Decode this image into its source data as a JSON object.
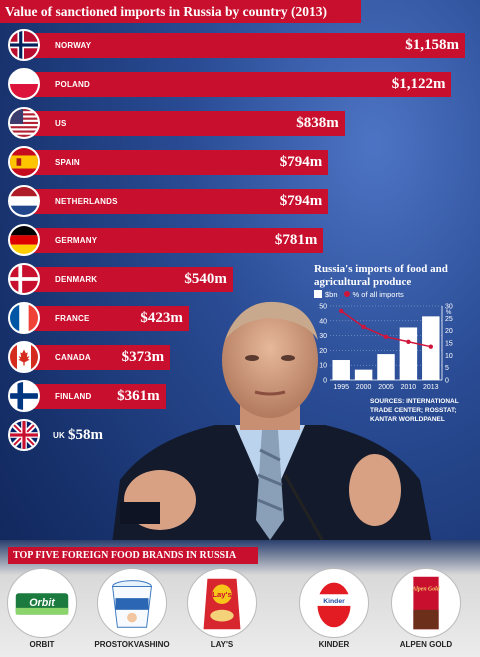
{
  "title": "Value of sanctioned imports in Russia by country (2013)",
  "chart_data": [
    {
      "type": "bar",
      "title": "Value of sanctioned imports in Russia by country (2013)",
      "unit": "$m",
      "categories": [
        "NORWAY",
        "POLAND",
        "US",
        "SPAIN",
        "NETHERLANDS",
        "GERMANY",
        "DENMARK",
        "FRANCE",
        "CANADA",
        "FINLAND",
        "UK"
      ],
      "values": [
        1158,
        1122,
        838,
        794,
        794,
        781,
        540,
        423,
        373,
        361,
        58
      ],
      "value_labels": [
        "$1,158m",
        "$1,122m",
        "$838m",
        "$794m",
        "$794m",
        "$781m",
        "$540m",
        "$423m",
        "$373m",
        "$361m",
        "$58m"
      ],
      "bar_color": "#c8102e"
    },
    {
      "type": "bar",
      "title": "Russia's imports of food and agricultural produce",
      "categories": [
        "1995",
        "2000",
        "2005",
        "2010",
        "2013"
      ],
      "series": [
        {
          "name": "$bn",
          "type": "bar",
          "values": [
            13.5,
            7,
            17.5,
            35.5,
            43
          ],
          "axis": "left",
          "color": "#ffffff"
        },
        {
          "name": "% of all imports",
          "type": "line",
          "values": [
            28,
            21.5,
            17.5,
            15.5,
            13.5
          ],
          "axis": "right",
          "color": "#d0143a"
        }
      ],
      "ylim_left": [
        0,
        50
      ],
      "yticks_left": [
        "0",
        "10",
        "20",
        "30",
        "40",
        "50"
      ],
      "ylim_right": [
        0,
        30
      ],
      "yticks_right": [
        "0",
        "5",
        "10",
        "15",
        "20",
        "25",
        "30"
      ],
      "right_axis_unit": "%"
    }
  ],
  "inset": {
    "title": "Russia's imports of food and agricultural produce",
    "legend_bn": "$bn",
    "legend_pct": "% of all imports",
    "right_unit": "%",
    "sources": "SOURCES: INTERNATIONAL TRADE CENTER; ROSSTAT; KANTAR WORLDPANEL"
  },
  "brands": {
    "title": "TOP FIVE FOREIGN FOOD BRANDS IN RUSSIA",
    "items": [
      "ORBIT",
      "PROSTOKVASHINO",
      "LAY'S",
      "KINDER",
      "ALPEN GOLD"
    ]
  },
  "product_text": {
    "orbit": "Orbit",
    "lays": "Lay's",
    "kinder": "Kinder",
    "alpen": "Alpen Gold"
  },
  "colors": {
    "accent": "#c8102e",
    "background": "#1d3a78"
  }
}
